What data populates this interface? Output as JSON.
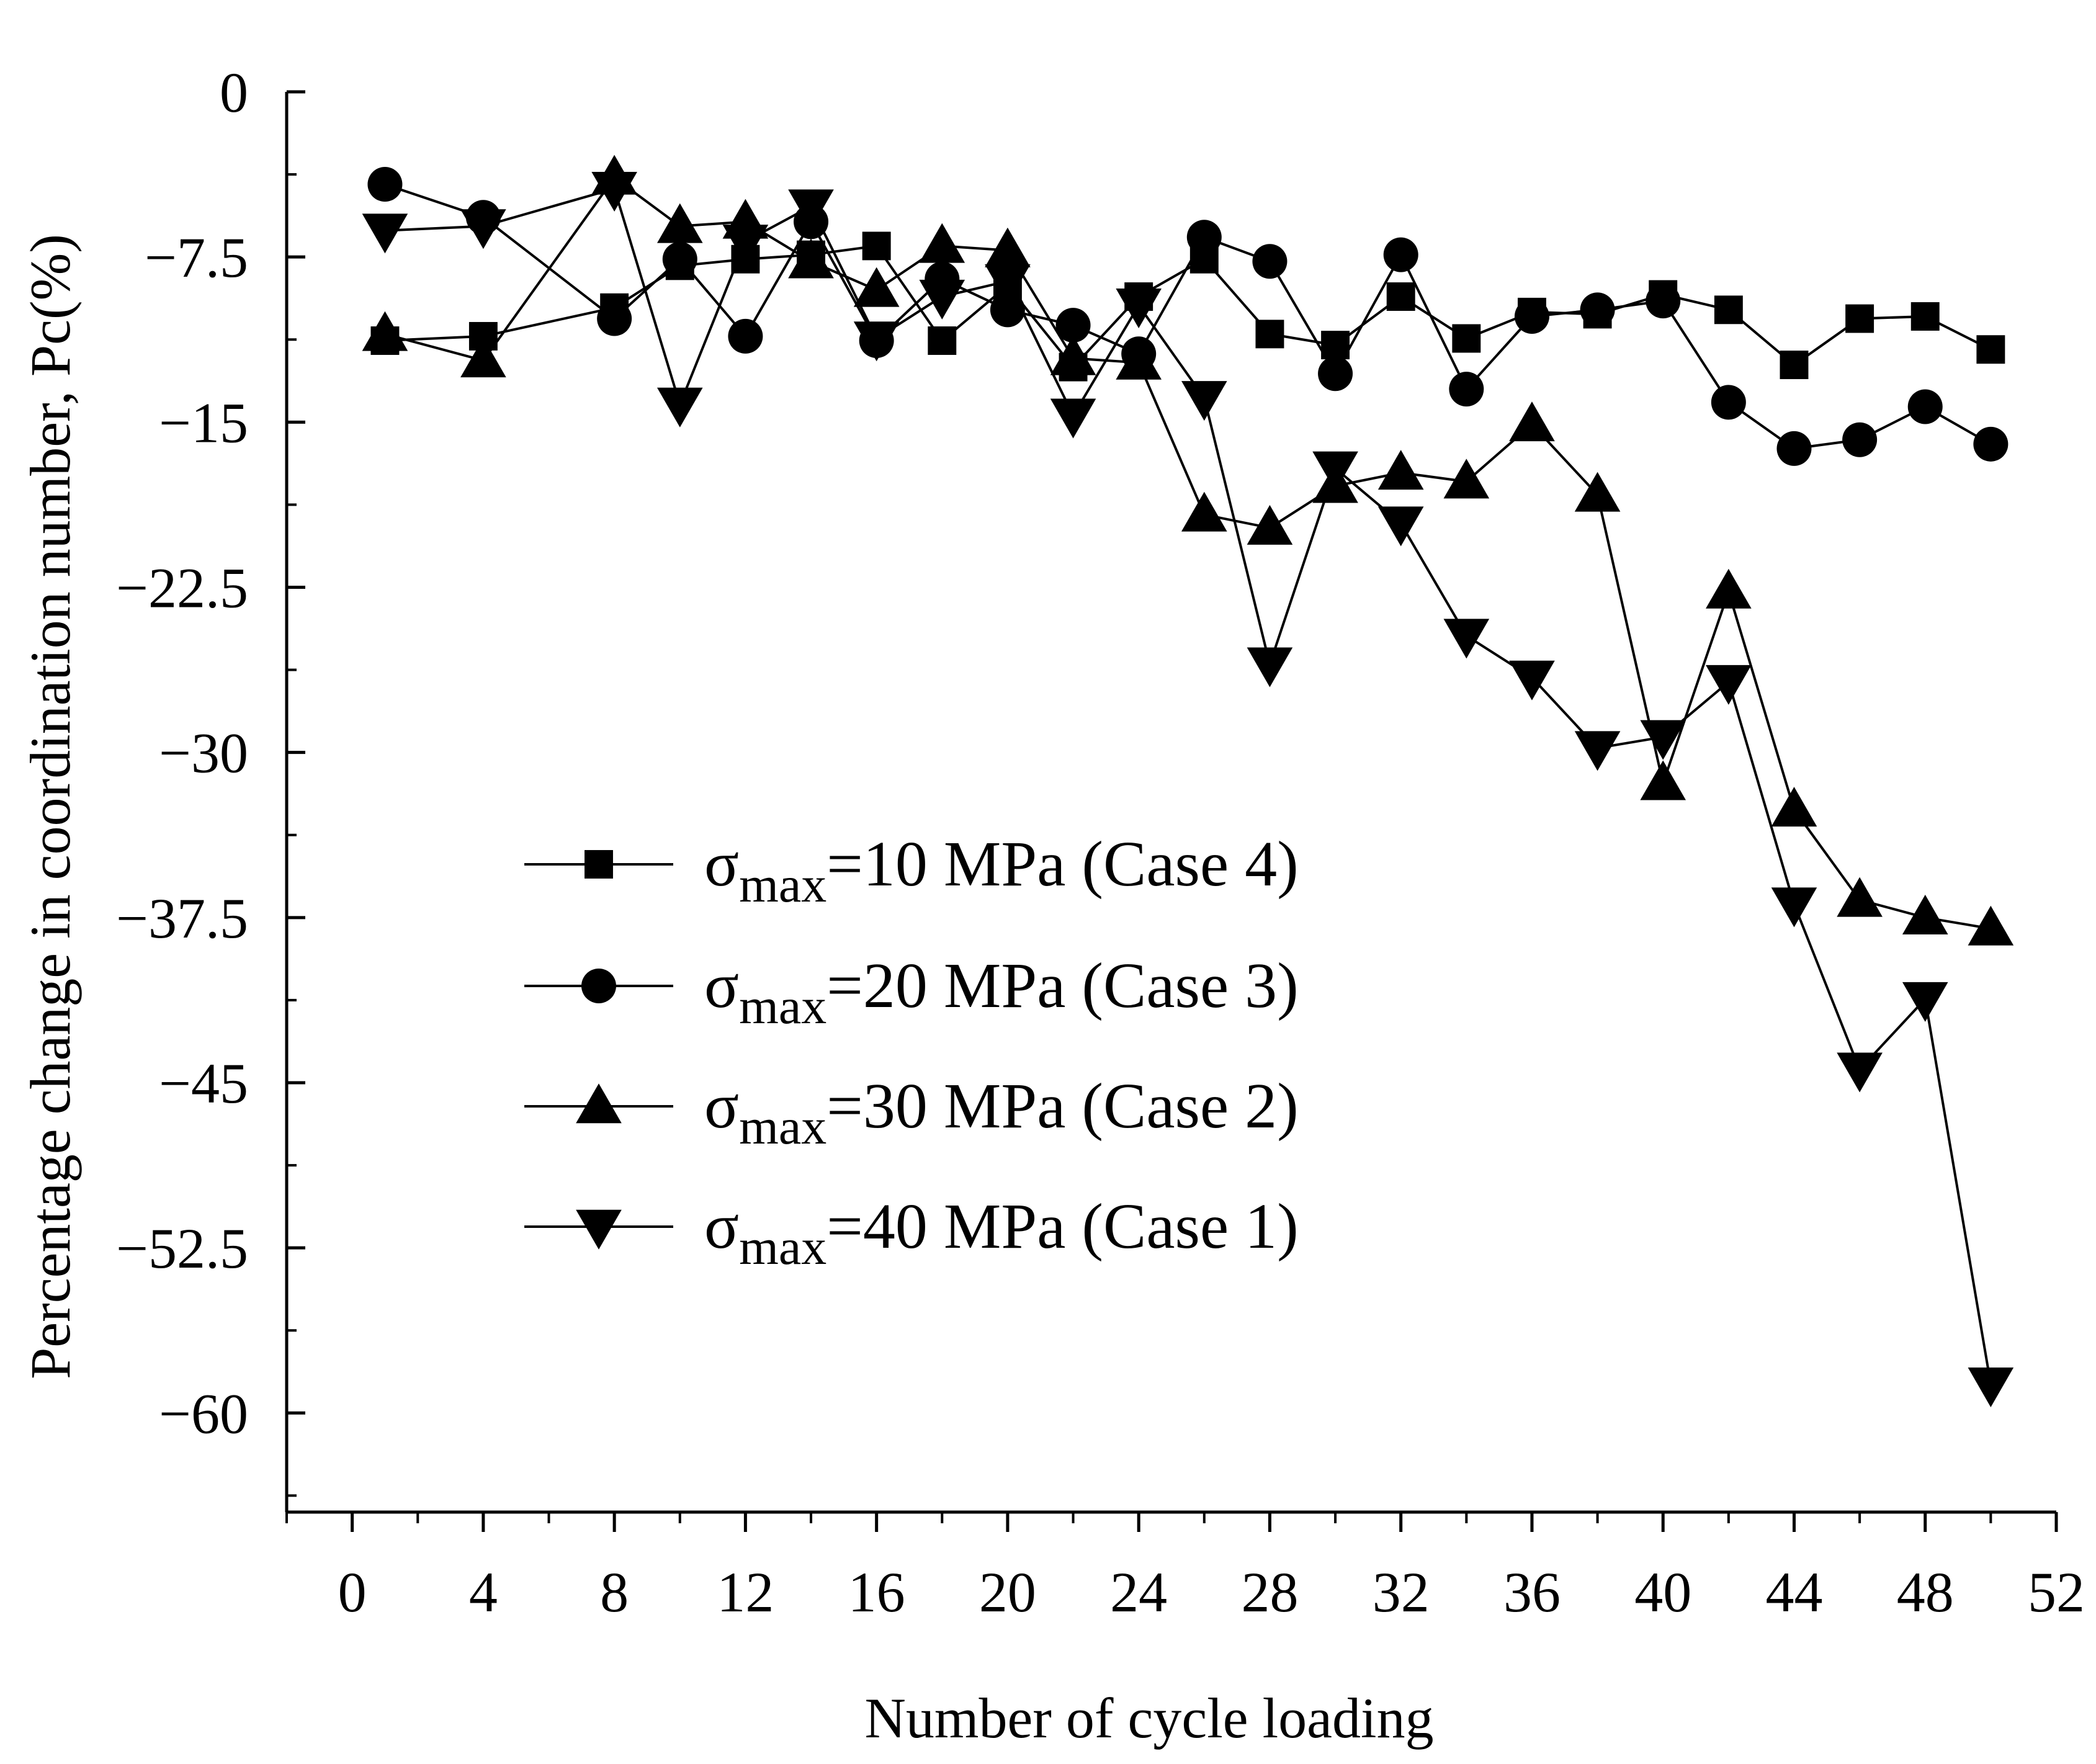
{
  "chart_data": {
    "type": "line",
    "title": "",
    "xlabel": "Number of cycle loading",
    "ylabel": "Percentage change in coordination number, Pc(%)",
    "xlim": [
      -2,
      52
    ],
    "ylim": [
      -64.5,
      0
    ],
    "x_ticks": [
      "0",
      "4",
      "8",
      "12",
      "16",
      "20",
      "24",
      "28",
      "32",
      "36",
      "40",
      "44",
      "48",
      "52"
    ],
    "y_ticks": [
      "0",
      "−7.5",
      "−15",
      "−22.5",
      "−30",
      "−37.5",
      "−45",
      "−52.5",
      "−60"
    ],
    "legend_position": "center-left",
    "x": [
      1,
      4,
      8,
      10,
      12,
      14,
      16,
      18,
      20,
      22,
      24,
      26,
      28,
      30,
      32,
      34,
      36,
      38,
      40,
      42,
      44,
      46,
      48,
      50
    ],
    "series": [
      {
        "name": "σmax=10 MPa (Case 4)",
        "legend_main": "σ",
        "legend_sub": "max",
        "legend_rest": "=10 MPa (Case 4)",
        "marker": "square",
        "values": [
          -11.3,
          -11.1,
          -9.8,
          -7.9,
          -7.6,
          -7.4,
          -7.0,
          -11.3,
          -8.8,
          -12.5,
          -9.3,
          -7.6,
          -11.0,
          -11.5,
          -9.3,
          -11.2,
          -10.0,
          -10.1,
          -9.2,
          -9.9,
          -12.4,
          -10.3,
          -10.2,
          -11.7
        ]
      },
      {
        "name": "σmax=20 MPa (Case 3)",
        "legend_main": "σ",
        "legend_sub": "max",
        "legend_rest": "=20 MPa (Case 3)",
        "marker": "circle",
        "values": [
          -4.2,
          -5.7,
          -10.3,
          -7.6,
          -11.1,
          -5.9,
          -11.3,
          -8.5,
          -9.9,
          -10.6,
          -11.9,
          -6.6,
          -7.7,
          -12.8,
          -7.4,
          -13.5,
          -10.2,
          -9.9,
          -9.5,
          -14.1,
          -16.2,
          -15.8,
          -14.3,
          -16.0
        ]
      },
      {
        "name": "σmax=30 MPa (Case 2)",
        "legend_main": "σ",
        "legend_sub": "max",
        "legend_rest": "=30 MPa (Case 2)",
        "marker": "triangle-up",
        "values": [
          -11.0,
          -12.2,
          -3.9,
          -6.1,
          -5.9,
          -7.7,
          -9.0,
          -7.0,
          -7.2,
          -12.1,
          -12.3,
          -19.2,
          -19.8,
          -17.9,
          -17.3,
          -17.7,
          -15.1,
          -18.3,
          -31.4,
          -22.7,
          -32.6,
          -36.7,
          -37.5,
          -38.0
        ]
      },
      {
        "name": "σmax=40 MPa (Case 1)",
        "legend_main": "σ",
        "legend_sub": "max",
        "legend_rest": "=40 MPa (Case 1)",
        "marker": "triangle-down",
        "values": [
          -6.3,
          -6.1,
          -4.4,
          -14.2,
          -6.8,
          -5.2,
          -11.2,
          -9.3,
          -8.6,
          -14.7,
          -9.7,
          -13.9,
          -26.0,
          -17.1,
          -19.6,
          -24.7,
          -26.6,
          -29.8,
          -29.3,
          -26.8,
          -36.9,
          -44.4,
          -41.2,
          -58.7
        ]
      }
    ]
  }
}
